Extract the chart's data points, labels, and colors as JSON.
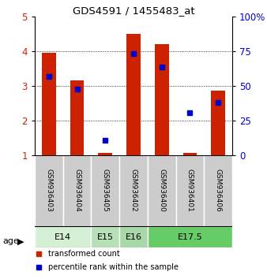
{
  "title": "GDS4591 / 1455483_at",
  "samples": [
    "GSM936403",
    "GSM936404",
    "GSM936405",
    "GSM936402",
    "GSM936400",
    "GSM936401",
    "GSM936406"
  ],
  "red_values": [
    3.95,
    3.15,
    1.05,
    4.5,
    4.2,
    1.05,
    2.87
  ],
  "blue_values": [
    3.28,
    2.9,
    1.42,
    3.93,
    3.55,
    2.22,
    2.52
  ],
  "age_groups": [
    {
      "label": "E14",
      "start": 0,
      "end": 2,
      "color": "#d4f0d4"
    },
    {
      "label": "E15",
      "start": 2,
      "end": 3,
      "color": "#b8e0b8"
    },
    {
      "label": "E16",
      "start": 3,
      "end": 4,
      "color": "#a8d8a8"
    },
    {
      "label": "E17.5",
      "start": 4,
      "end": 7,
      "color": "#66cc66"
    }
  ],
  "bar_color": "#cc2200",
  "dot_color": "#0000cc",
  "left_ylim": [
    1,
    5
  ],
  "left_yticks": [
    1,
    2,
    3,
    4,
    5
  ],
  "right_yticks": [
    0,
    25,
    50,
    75,
    100
  ],
  "right_yticklabels": [
    "0",
    "25",
    "50",
    "75",
    "100%"
  ],
  "legend_labels": [
    "transformed count",
    "percentile rank within the sample"
  ],
  "age_label": "age",
  "sample_bg_color": "#cccccc",
  "bar_width": 0.5
}
